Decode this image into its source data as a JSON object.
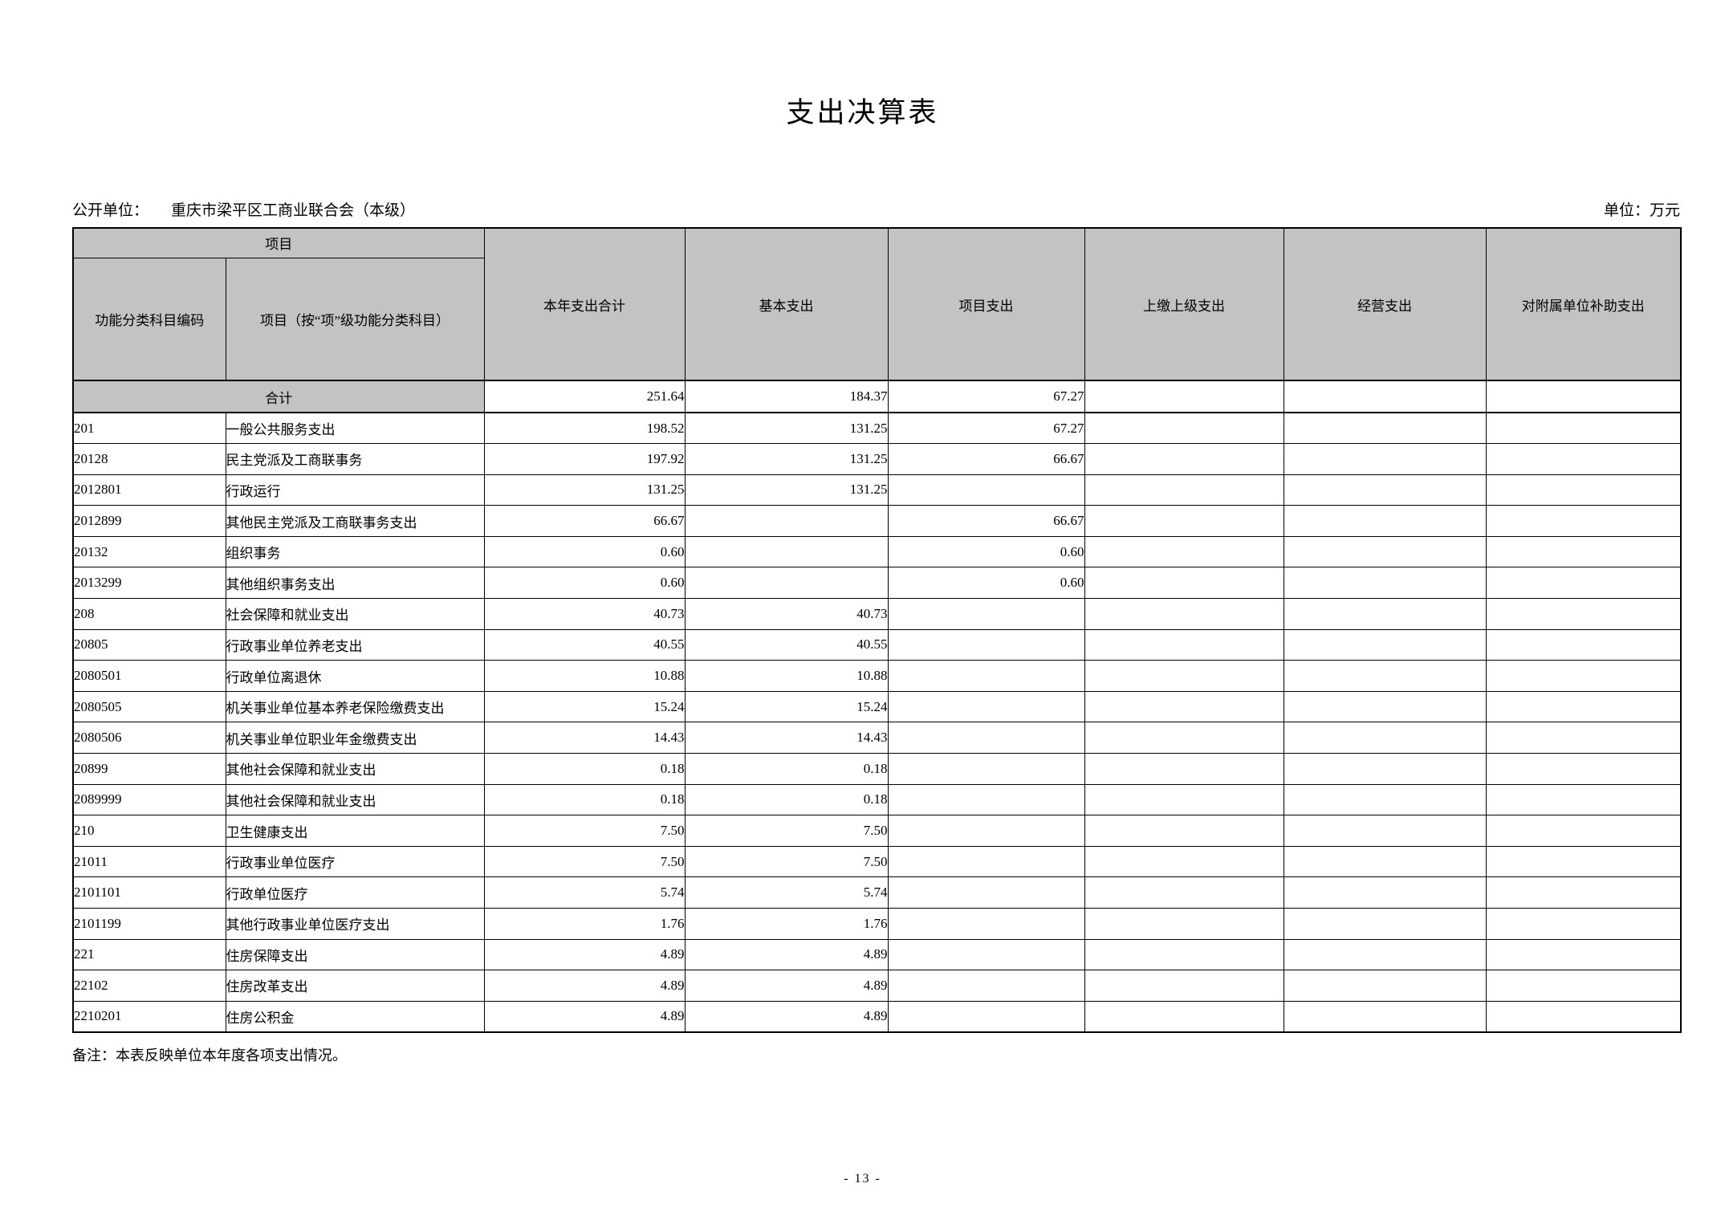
{
  "page": {
    "title": "支出决算表",
    "unit_label": "公开单位：",
    "unit_name": "重庆市梁平区工商业联合会（本级）",
    "currency_note": "单位：万元",
    "footnote": "备注：本表反映单位本年度各项支出情况。",
    "page_number": "- 13 -"
  },
  "colors": {
    "header_bg": "#c3c3c3",
    "border": "#000000",
    "page_bg": "#ffffff"
  },
  "table": {
    "header": {
      "group": "项目",
      "code": "功能分类科目编码",
      "item": "项目（按“项”级功能分类科目）",
      "total": "本年支出合计",
      "basic": "基本支出",
      "project": "项目支出",
      "upper": "上缴上级支出",
      "operating": "经营支出",
      "subsidy": "对附属单位补助支出"
    },
    "total_row": {
      "label": "合计",
      "total": "251.64",
      "basic": "184.37",
      "project": "67.27",
      "upper": "",
      "operating": "",
      "subsidy": ""
    },
    "rows": [
      {
        "code": "201",
        "item": "一般公共服务支出",
        "total": "198.52",
        "basic": "131.25",
        "project": "67.27",
        "upper": "",
        "operating": "",
        "subsidy": ""
      },
      {
        "code": "20128",
        "item": "民主党派及工商联事务",
        "total": "197.92",
        "basic": "131.25",
        "project": "66.67",
        "upper": "",
        "operating": "",
        "subsidy": ""
      },
      {
        "code": "2012801",
        "item": "行政运行",
        "total": "131.25",
        "basic": "131.25",
        "project": "",
        "upper": "",
        "operating": "",
        "subsidy": ""
      },
      {
        "code": "2012899",
        "item": "其他民主党派及工商联事务支出",
        "total": "66.67",
        "basic": "",
        "project": "66.67",
        "upper": "",
        "operating": "",
        "subsidy": ""
      },
      {
        "code": "20132",
        "item": "组织事务",
        "total": "0.60",
        "basic": "",
        "project": "0.60",
        "upper": "",
        "operating": "",
        "subsidy": ""
      },
      {
        "code": "2013299",
        "item": "其他组织事务支出",
        "total": "0.60",
        "basic": "",
        "project": "0.60",
        "upper": "",
        "operating": "",
        "subsidy": ""
      },
      {
        "code": "208",
        "item": "社会保障和就业支出",
        "total": "40.73",
        "basic": "40.73",
        "project": "",
        "upper": "",
        "operating": "",
        "subsidy": ""
      },
      {
        "code": "20805",
        "item": "行政事业单位养老支出",
        "total": "40.55",
        "basic": "40.55",
        "project": "",
        "upper": "",
        "operating": "",
        "subsidy": ""
      },
      {
        "code": "2080501",
        "item": "行政单位离退休",
        "total": "10.88",
        "basic": "10.88",
        "project": "",
        "upper": "",
        "operating": "",
        "subsidy": ""
      },
      {
        "code": "2080505",
        "item": "机关事业单位基本养老保险缴费支出",
        "total": "15.24",
        "basic": "15.24",
        "project": "",
        "upper": "",
        "operating": "",
        "subsidy": ""
      },
      {
        "code": "2080506",
        "item": "机关事业单位职业年金缴费支出",
        "total": "14.43",
        "basic": "14.43",
        "project": "",
        "upper": "",
        "operating": "",
        "subsidy": ""
      },
      {
        "code": "20899",
        "item": "其他社会保障和就业支出",
        "total": "0.18",
        "basic": "0.18",
        "project": "",
        "upper": "",
        "operating": "",
        "subsidy": ""
      },
      {
        "code": "2089999",
        "item": "其他社会保障和就业支出",
        "total": "0.18",
        "basic": "0.18",
        "project": "",
        "upper": "",
        "operating": "",
        "subsidy": ""
      },
      {
        "code": "210",
        "item": "卫生健康支出",
        "total": "7.50",
        "basic": "7.50",
        "project": "",
        "upper": "",
        "operating": "",
        "subsidy": ""
      },
      {
        "code": "21011",
        "item": "行政事业单位医疗",
        "total": "7.50",
        "basic": "7.50",
        "project": "",
        "upper": "",
        "operating": "",
        "subsidy": ""
      },
      {
        "code": "2101101",
        "item": "行政单位医疗",
        "total": "5.74",
        "basic": "5.74",
        "project": "",
        "upper": "",
        "operating": "",
        "subsidy": ""
      },
      {
        "code": "2101199",
        "item": "其他行政事业单位医疗支出",
        "total": "1.76",
        "basic": "1.76",
        "project": "",
        "upper": "",
        "operating": "",
        "subsidy": ""
      },
      {
        "code": "221",
        "item": "住房保障支出",
        "total": "4.89",
        "basic": "4.89",
        "project": "",
        "upper": "",
        "operating": "",
        "subsidy": ""
      },
      {
        "code": "22102",
        "item": "住房改革支出",
        "total": "4.89",
        "basic": "4.89",
        "project": "",
        "upper": "",
        "operating": "",
        "subsidy": ""
      },
      {
        "code": "2210201",
        "item": "住房公积金",
        "total": "4.89",
        "basic": "4.89",
        "project": "",
        "upper": "",
        "operating": "",
        "subsidy": ""
      }
    ]
  }
}
